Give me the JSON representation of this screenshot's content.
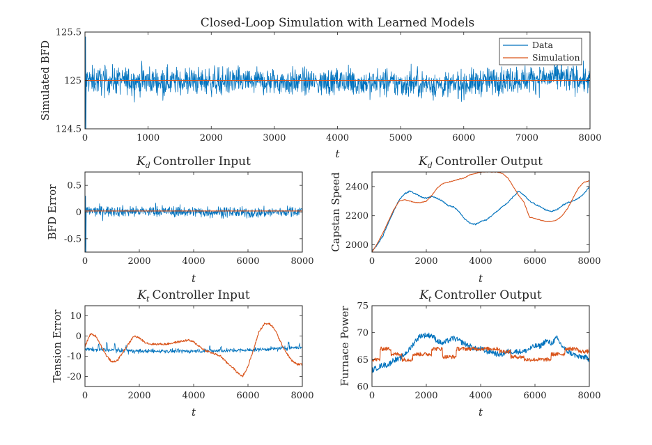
{
  "figure": {
    "colors": {
      "data": "#0072BD",
      "simulation": "#D95319",
      "axis": "#262626"
    }
  },
  "chart_data": [
    {
      "id": "top",
      "type": "line",
      "title": "Closed-Loop Simulation with Learned Models",
      "xlabel": "t",
      "ylabel": "Simulated BFD",
      "xlim": [
        0,
        8000
      ],
      "ylim": [
        124.5,
        125.5
      ],
      "xticks": [
        0,
        1000,
        2000,
        3000,
        4000,
        5000,
        6000,
        7000,
        8000
      ],
      "xtick_labels": [
        "0",
        "1000",
        "2000",
        "3000",
        "4000",
        "5000",
        "6000",
        "7000",
        "8000"
      ],
      "yticks": [
        124.5,
        125,
        125.5
      ],
      "ytick_labels": [
        "124.5",
        "125",
        "125.5"
      ],
      "legend": {
        "position": "top-right",
        "entries": [
          "Data",
          "Simulation"
        ]
      },
      "series": [
        {
          "name": "Data",
          "color": "#0072BD",
          "kind": "noise",
          "baseline": 125.0,
          "amplitude": 0.1,
          "initial_spike_min": 124.5,
          "initial_spike_max": 125.45,
          "knots_x": [
            0,
            4000,
            5500,
            5800,
            6500,
            7500,
            8000
          ],
          "knots_y": [
            125.0,
            124.98,
            124.96,
            124.95,
            125.0,
            125.03,
            125.0
          ]
        },
        {
          "name": "Simulation",
          "color": "#D95319",
          "kind": "knots",
          "x": [
            0,
            8000
          ],
          "y": [
            125.0,
            125.0
          ]
        }
      ]
    },
    {
      "id": "kd-input",
      "type": "line",
      "title": "Controller Input",
      "title_symbol": "K",
      "title_subscript": "d",
      "xlabel": "t",
      "ylabel": "BFD Error",
      "xlim": [
        0,
        8000
      ],
      "ylim": [
        -0.75,
        0.75
      ],
      "xticks": [
        0,
        2000,
        4000,
        6000,
        8000
      ],
      "xtick_labels": [
        "0",
        "2000",
        "4000",
        "6000",
        "8000"
      ],
      "yticks": [
        -0.5,
        0,
        0.5
      ],
      "ytick_labels": [
        "-0.5",
        "0",
        "0.5"
      ],
      "series": [
        {
          "name": "Data",
          "color": "#0072BD",
          "kind": "noise",
          "baseline": 0.0,
          "amplitude": 0.07,
          "initial_spike_min": -0.75,
          "initial_spike_max": 0.3,
          "knots_x": [
            0,
            5500,
            6000,
            8000
          ],
          "knots_y": [
            0.02,
            0.0,
            -0.02,
            0.02
          ]
        },
        {
          "name": "Simulation",
          "color": "#D95319",
          "kind": "knots",
          "x": [
            0,
            8000
          ],
          "y": [
            0.02,
            0.02
          ]
        }
      ]
    },
    {
      "id": "kd-output",
      "type": "line",
      "title": "Controller Output",
      "title_symbol": "K",
      "title_subscript": "d",
      "xlabel": "t",
      "ylabel": "Capstan Speed",
      "xlim": [
        0,
        8000
      ],
      "ylim": [
        1950,
        2500
      ],
      "xticks": [
        0,
        2000,
        4000,
        6000,
        8000
      ],
      "xtick_labels": [
        "0",
        "2000",
        "4000",
        "6000",
        "8000"
      ],
      "yticks": [
        2000,
        2200,
        2400
      ],
      "ytick_labels": [
        "2000",
        "2200",
        "2400"
      ],
      "series": [
        {
          "name": "Data",
          "color": "#0072BD",
          "kind": "knots",
          "jitter": 4,
          "x": [
            0,
            200,
            400,
            600,
            800,
            1000,
            1200,
            1400,
            1600,
            1800,
            2000,
            2200,
            2400,
            2600,
            2800,
            3000,
            3200,
            3400,
            3600,
            3800,
            4000,
            4200,
            4400,
            4600,
            4800,
            5000,
            5200,
            5400,
            5600,
            5800,
            6000,
            6200,
            6400,
            6600,
            6800,
            7000,
            7200,
            7400,
            7600,
            7800,
            8000
          ],
          "y": [
            1960,
            2000,
            2060,
            2150,
            2230,
            2310,
            2350,
            2370,
            2350,
            2330,
            2320,
            2330,
            2320,
            2300,
            2270,
            2260,
            2230,
            2180,
            2150,
            2140,
            2160,
            2170,
            2200,
            2230,
            2260,
            2290,
            2330,
            2370,
            2340,
            2300,
            2280,
            2260,
            2240,
            2230,
            2240,
            2270,
            2290,
            2300,
            2320,
            2350,
            2400
          ]
        },
        {
          "name": "Simulation",
          "color": "#D95319",
          "kind": "knots",
          "jitter": 2,
          "x": [
            0,
            200,
            400,
            600,
            800,
            1000,
            1200,
            1400,
            1600,
            1800,
            2000,
            2200,
            2400,
            2600,
            2800,
            3000,
            3200,
            3400,
            3600,
            3800,
            4000,
            4200,
            4400,
            4600,
            4800,
            5000,
            5200,
            5400,
            5600,
            5800,
            6000,
            6200,
            6400,
            6600,
            6800,
            7000,
            7200,
            7400,
            7600,
            7800,
            8000
          ],
          "y": [
            1950,
            2010,
            2080,
            2160,
            2240,
            2300,
            2310,
            2300,
            2290,
            2290,
            2300,
            2340,
            2390,
            2420,
            2430,
            2440,
            2450,
            2460,
            2480,
            2490,
            2500,
            2500,
            2500,
            2500,
            2490,
            2460,
            2400,
            2340,
            2290,
            2190,
            2180,
            2170,
            2160,
            2160,
            2170,
            2200,
            2250,
            2320,
            2390,
            2430,
            2440
          ]
        }
      ]
    },
    {
      "id": "kt-input",
      "type": "line",
      "title": "Controller Input",
      "title_symbol": "K",
      "title_subscript": "t",
      "xlabel": "t",
      "ylabel": "Tension Error",
      "xlim": [
        0,
        8000
      ],
      "ylim": [
        -25,
        15
      ],
      "xticks": [
        0,
        2000,
        4000,
        6000,
        8000
      ],
      "xtick_labels": [
        "0",
        "2000",
        "4000",
        "6000",
        "8000"
      ],
      "yticks": [
        -20,
        -10,
        0,
        10
      ],
      "ytick_labels": [
        "-20",
        "-10",
        "0",
        "10"
      ],
      "series": [
        {
          "name": "Data",
          "color": "#0072BD",
          "kind": "noise",
          "baseline": -7.0,
          "amplitude": 0.7,
          "knots_x": [
            0,
            1000,
            2000,
            4000,
            6000,
            8000
          ],
          "knots_y": [
            -6.5,
            -7.0,
            -7.5,
            -7.5,
            -7.0,
            -5.5
          ],
          "spikes": [
            [
              500,
              -4
            ],
            [
              800,
              -3
            ],
            [
              1100,
              -4
            ],
            [
              1500,
              -5
            ],
            [
              4600,
              -5
            ],
            [
              5000,
              -5.5
            ],
            [
              7500,
              -3.5
            ],
            [
              7900,
              -4
            ]
          ]
        },
        {
          "name": "Simulation",
          "color": "#D95319",
          "kind": "knots",
          "jitter": 0.5,
          "x": [
            0,
            200,
            400,
            600,
            800,
            1000,
            1200,
            1400,
            1600,
            1800,
            2000,
            2200,
            2400,
            2600,
            2800,
            3000,
            3200,
            3400,
            3600,
            3800,
            4000,
            4200,
            4400,
            4600,
            4800,
            5000,
            5200,
            5400,
            5600,
            5800,
            6000,
            6200,
            6400,
            6600,
            6800,
            7000,
            7200,
            7400,
            7600,
            7800,
            8000
          ],
          "y": [
            -5,
            1,
            0,
            -5,
            -10,
            -13,
            -12,
            -8,
            -4,
            0,
            -1,
            -3,
            -4,
            -4,
            -4,
            -4,
            -3.5,
            -3,
            -2.5,
            -2,
            -3,
            -5,
            -7,
            -8,
            -9,
            -10,
            -13,
            -15,
            -18,
            -20,
            -15,
            -7,
            2,
            6,
            6,
            3,
            -3,
            -8,
            -12,
            -14,
            -14
          ]
        }
      ]
    },
    {
      "id": "kt-output",
      "type": "line",
      "title": "Controller Output",
      "title_symbol": "K",
      "title_subscript": "t",
      "xlabel": "t",
      "ylabel": "Furnace Power",
      "xlim": [
        0,
        8000
      ],
      "ylim": [
        60,
        75
      ],
      "xticks": [
        0,
        2000,
        4000,
        6000,
        8000
      ],
      "xtick_labels": [
        "0",
        "2000",
        "4000",
        "6000",
        "8000"
      ],
      "yticks": [
        60,
        65,
        70,
        75
      ],
      "ytick_labels": [
        "60",
        "65",
        "70",
        "75"
      ],
      "series": [
        {
          "name": "Data",
          "color": "#0072BD",
          "kind": "knots",
          "jitter": 0.5,
          "x": [
            0,
            200,
            400,
            600,
            800,
            1000,
            1200,
            1400,
            1600,
            1800,
            2000,
            2200,
            2400,
            2600,
            2800,
            3000,
            3200,
            3400,
            3600,
            3800,
            4000,
            4200,
            4400,
            4600,
            4800,
            5000,
            5200,
            5400,
            5600,
            5800,
            6000,
            6200,
            6400,
            6600,
            6800,
            7000,
            7200,
            7400,
            7600,
            7800,
            8000
          ],
          "y": [
            63,
            63.5,
            64,
            64,
            65,
            65,
            66,
            67,
            68.5,
            69.5,
            69.5,
            69.5,
            68.5,
            68,
            68.5,
            69,
            68.5,
            68,
            67.5,
            67,
            67,
            66.5,
            66.5,
            66,
            66,
            66.5,
            66.5,
            66.5,
            66.5,
            67,
            67.5,
            67.5,
            68.5,
            68,
            69,
            67.5,
            66.5,
            66,
            65.5,
            65.5,
            65
          ]
        },
        {
          "name": "Simulation",
          "color": "#D95319",
          "kind": "steps",
          "jitter": 0.35,
          "x": [
            0,
            300,
            700,
            1100,
            1500,
            2200,
            2600,
            3100,
            3900,
            4700,
            5100,
            5600,
            6200,
            6600,
            7100,
            7600,
            8000
          ],
          "y": [
            65,
            67,
            66,
            65,
            66,
            67,
            65.5,
            67,
            67,
            66.5,
            65.5,
            65,
            65,
            66,
            67,
            66.5,
            67
          ]
        }
      ]
    }
  ]
}
